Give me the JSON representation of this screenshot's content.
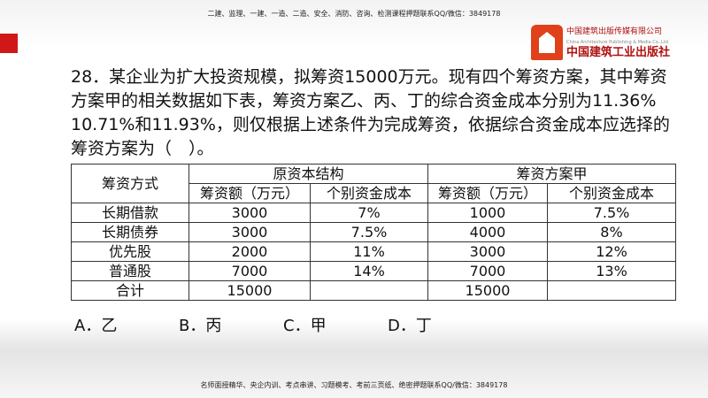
{
  "header": {
    "note": "二建、监理、一建、一造、二造、安全、消防、咨询、检测课程押题联系QQ/微信：3849178"
  },
  "logo": {
    "cn": "中国建筑出版传媒有限公司",
    "en": "China Architecture Publishing & Media Co.,Ltd",
    "brand": "中国建筑工业出版社"
  },
  "question": {
    "text": "28．某企业为扩大投资规模，拟筹资15000万元。现有四个筹资方案，其中筹资方案甲的相关数据如下表，筹资方案乙、丙、丁的综合资金成本分别为11.36% 10.71%和11.93%，则仅根据上述条件为完成筹资，依据综合资金成本应选择的筹资方案为（　）。"
  },
  "table": {
    "col0": "筹资方式",
    "group1": "原资本结构",
    "group2": "筹资方案甲",
    "sub": [
      "筹资额（万元）",
      "个别资金成本",
      "筹资额（万元）",
      "个别资金成本"
    ],
    "rows": [
      [
        "长期借款",
        "3000",
        "7%",
        "1000",
        "7.5%"
      ],
      [
        "长期债券",
        "3000",
        "7.5%",
        "4000",
        "8%"
      ],
      [
        "优先股",
        "2000",
        "11%",
        "3000",
        "12%"
      ],
      [
        "普通股",
        "7000",
        "14%",
        "7000",
        "13%"
      ],
      [
        "合计",
        "15000",
        "",
        "15000",
        ""
      ]
    ]
  },
  "options": [
    "A．乙",
    "B．丙",
    "C．甲",
    "D．丁"
  ],
  "footer": {
    "note": "名师面授精华、央企内训、考点串讲、习题模考、考前三页纸、绝密押题联系QQ/微信：3849178"
  }
}
